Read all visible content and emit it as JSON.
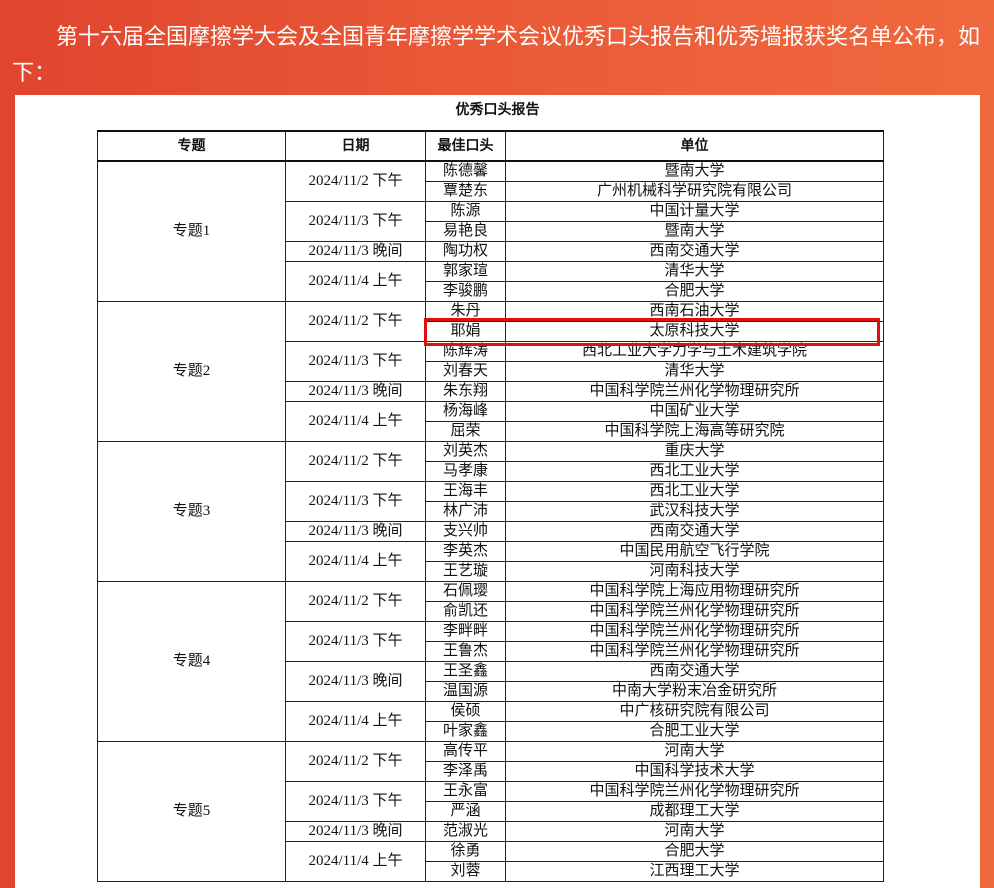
{
  "article": {
    "intro": "第十六届全国摩擦学大会及全国青年摩擦学学术会议优秀口头报告和优秀墙报获奖名单公布，如下：",
    "caption": "优秀口头报告"
  },
  "table": {
    "headers": [
      "专题",
      "日期",
      "最佳口头",
      "单位"
    ],
    "groups": [
      {
        "topic": "专题1",
        "sessions": [
          {
            "date": "2024/11/2 下午",
            "entries": [
              {
                "name": "陈德馨",
                "unit": "暨南大学"
              },
              {
                "name": "覃楚东",
                "unit": "广州机械科学研究院有限公司"
              }
            ]
          },
          {
            "date": "2024/11/3 下午",
            "entries": [
              {
                "name": "陈源",
                "unit": "中国计量大学"
              },
              {
                "name": "易艳良",
                "unit": "暨南大学"
              }
            ]
          },
          {
            "date": "2024/11/3 晚间",
            "entries": [
              {
                "name": "陶功权",
                "unit": "西南交通大学"
              }
            ]
          },
          {
            "date": "2024/11/4 上午",
            "entries": [
              {
                "name": "郭家瑄",
                "unit": "清华大学"
              },
              {
                "name": "李骏鹏",
                "unit": "合肥大学"
              }
            ]
          }
        ]
      },
      {
        "topic": "专题2",
        "sessions": [
          {
            "date": "2024/11/2 下午",
            "entries": [
              {
                "name": "朱丹",
                "unit": "西南石油大学"
              },
              {
                "name": "耶娟",
                "unit": "太原科技大学",
                "highlight": true
              }
            ]
          },
          {
            "date": "2024/11/3 下午",
            "entries": [
              {
                "name": "陈辉涛",
                "unit": "西北工业大学力学与土木建筑学院"
              },
              {
                "name": "刘春天",
                "unit": "清华大学"
              }
            ]
          },
          {
            "date": "2024/11/3 晚间",
            "entries": [
              {
                "name": "朱东翔",
                "unit": "中国科学院兰州化学物理研究所"
              }
            ]
          },
          {
            "date": "2024/11/4 上午",
            "entries": [
              {
                "name": "杨海峰",
                "unit": "中国矿业大学"
              },
              {
                "name": "屈荣",
                "unit": "中国科学院上海高等研究院"
              }
            ]
          }
        ]
      },
      {
        "topic": "专题3",
        "sessions": [
          {
            "date": "2024/11/2 下午",
            "entries": [
              {
                "name": "刘英杰",
                "unit": "重庆大学"
              },
              {
                "name": "马孝康",
                "unit": "西北工业大学"
              }
            ]
          },
          {
            "date": "2024/11/3 下午",
            "entries": [
              {
                "name": "王海丰",
                "unit": "西北工业大学"
              },
              {
                "name": "林广沛",
                "unit": "武汉科技大学"
              }
            ]
          },
          {
            "date": "2024/11/3 晚间",
            "entries": [
              {
                "name": "支兴帅",
                "unit": "西南交通大学"
              }
            ]
          },
          {
            "date": "2024/11/4 上午",
            "entries": [
              {
                "name": "李英杰",
                "unit": "中国民用航空飞行学院"
              },
              {
                "name": "王艺璇",
                "unit": "河南科技大学"
              }
            ]
          }
        ]
      },
      {
        "topic": "专题4",
        "sessions": [
          {
            "date": "2024/11/2 下午",
            "entries": [
              {
                "name": "石佩璎",
                "unit": "中国科学院上海应用物理研究所"
              },
              {
                "name": "俞凯还",
                "unit": "中国科学院兰州化学物理研究所"
              }
            ]
          },
          {
            "date": "2024/11/3 下午",
            "entries": [
              {
                "name": "李畔畔",
                "unit": "中国科学院兰州化学物理研究所"
              },
              {
                "name": "王鲁杰",
                "unit": "中国科学院兰州化学物理研究所"
              }
            ]
          },
          {
            "date": "2024/11/3 晚间",
            "entries": [
              {
                "name": "王圣鑫",
                "unit": "西南交通大学"
              },
              {
                "name": "温国源",
                "unit": "中南大学粉末冶金研究所"
              }
            ]
          },
          {
            "date": "2024/11/4 上午",
            "entries": [
              {
                "name": "侯硕",
                "unit": "中广核研究院有限公司"
              },
              {
                "name": "叶家鑫",
                "unit": "合肥工业大学"
              }
            ]
          }
        ]
      },
      {
        "topic": "专题5",
        "sessions": [
          {
            "date": "2024/11/2 下午",
            "entries": [
              {
                "name": "高传平",
                "unit": "河南大学"
              },
              {
                "name": "李泽禹",
                "unit": "中国科学技术大学"
              }
            ]
          },
          {
            "date": "2024/11/3 下午",
            "entries": [
              {
                "name": "王永富",
                "unit": "中国科学院兰州化学物理研究所"
              },
              {
                "name": "严涵",
                "unit": "成都理工大学"
              }
            ]
          },
          {
            "date": "2024/11/3 晚间",
            "entries": [
              {
                "name": "范淑光",
                "unit": "河南大学"
              }
            ]
          },
          {
            "date": "2024/11/4 上午",
            "entries": [
              {
                "name": "徐勇",
                "unit": "合肥大学"
              },
              {
                "name": "刘蓉",
                "unit": "江西理工大学"
              }
            ]
          }
        ]
      }
    ]
  }
}
